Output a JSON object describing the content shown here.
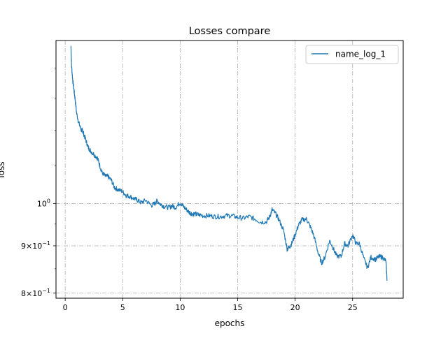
{
  "chart_data": {
    "type": "line",
    "title": "Losses compare",
    "xlabel": "epochs",
    "ylabel": "loss",
    "xlim": [
      -0.8,
      29.4
    ],
    "ylim": [
      0.79,
      1.5
    ],
    "yscale": "log",
    "grid": true,
    "legend_position": "top-right",
    "xticks": [
      0,
      5,
      10,
      15,
      20,
      25
    ],
    "xtick_labels": [
      "0",
      "5",
      "10",
      "15",
      "20",
      "25"
    ],
    "yticks": [
      {
        "value": 0.8,
        "base": "8",
        "exp": "−1"
      },
      {
        "value": 0.9,
        "base": "9",
        "exp": "−1"
      },
      {
        "value": 1.0,
        "base": "10",
        "exp": "0"
      }
    ],
    "series": [
      {
        "name": "name_log_1",
        "color": "#1f77b4",
        "x": [
          0.5,
          0.55,
          0.65,
          0.75,
          0.85,
          1.0,
          1.2,
          1.4,
          1.5,
          1.6,
          1.8,
          2.0,
          2.2,
          2.5,
          2.8,
          3.0,
          3.2,
          3.5,
          3.7,
          4.0,
          4.3,
          4.6,
          5.0,
          5.3,
          5.6,
          6.0,
          6.3,
          6.6,
          7.0,
          7.5,
          7.8,
          8.0,
          8.3,
          8.6,
          9.0,
          9.3,
          9.6,
          10.0,
          10.2,
          10.5,
          10.8,
          11.0,
          11.3,
          11.6,
          12.0,
          12.5,
          13.0,
          13.5,
          14.0,
          14.5,
          15.0,
          15.5,
          16.0,
          16.5,
          17.0,
          17.5,
          17.8,
          18.0,
          18.3,
          18.6,
          19.0,
          19.3,
          19.5,
          19.7,
          20.0,
          20.3,
          20.6,
          21.0,
          21.3,
          21.6,
          22.0,
          22.3,
          22.6,
          23.0,
          23.3,
          23.6,
          24.0,
          24.3,
          24.6,
          25.0,
          25.3,
          25.6,
          26.0,
          26.3,
          26.6,
          27.0,
          27.3,
          27.6,
          27.9,
          28.0
        ],
        "y": [
          1.48,
          1.41,
          1.36,
          1.33,
          1.3,
          1.25,
          1.22,
          1.2,
          1.2,
          1.19,
          1.17,
          1.15,
          1.14,
          1.13,
          1.12,
          1.1,
          1.08,
          1.07,
          1.07,
          1.06,
          1.04,
          1.035,
          1.03,
          1.02,
          1.018,
          1.012,
          1.008,
          1.002,
          1.008,
          0.995,
          1.0,
          1.007,
          0.998,
          0.993,
          0.99,
          0.994,
          0.99,
          1.002,
          0.995,
          0.986,
          0.978,
          0.975,
          0.974,
          0.972,
          0.97,
          0.97,
          0.968,
          0.968,
          0.97,
          0.97,
          0.966,
          0.964,
          0.968,
          0.962,
          0.955,
          0.955,
          0.968,
          0.985,
          0.975,
          0.96,
          0.935,
          0.893,
          0.897,
          0.905,
          0.925,
          0.948,
          0.96,
          0.962,
          0.945,
          0.925,
          0.885,
          0.862,
          0.875,
          0.912,
          0.895,
          0.878,
          0.876,
          0.905,
          0.9,
          0.925,
          0.905,
          0.905,
          0.87,
          0.852,
          0.875,
          0.87,
          0.876,
          0.875,
          0.866,
          0.825
        ]
      }
    ]
  }
}
